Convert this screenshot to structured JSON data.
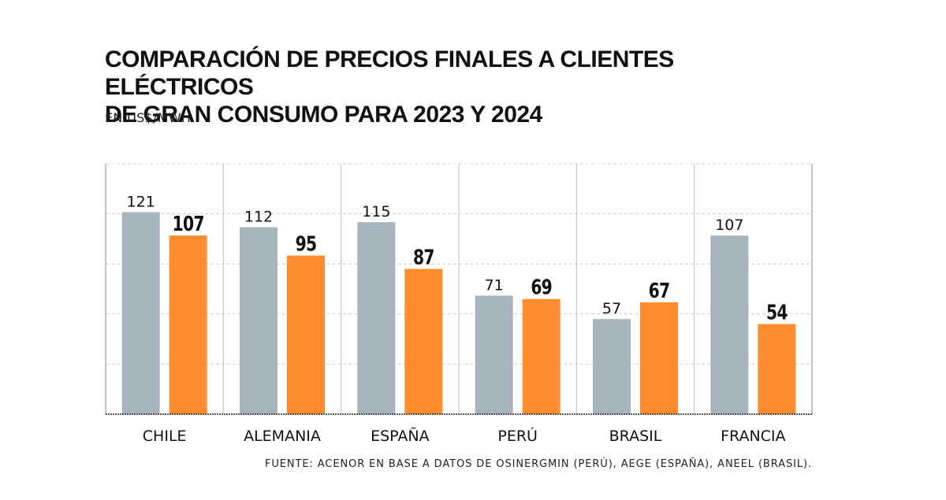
{
  "header": {
    "title_line1": "COMPARACIÓN DE PRECIOS FINALES A CLIENTES ELÉCTRICOS",
    "title_line2": "DE GRAN CONSUMO PARA 2023 Y 2024",
    "subtitle": "EN US$/MWH"
  },
  "footer": {
    "source": "FUENTE: ACENOR EN BASE A DATOS DE OSINERGMIN (PERÚ), AEGE (ESPAÑA), ANEEL (BRASIL)."
  },
  "colors": {
    "series_2023": "#a6b5bb",
    "series_2024": "#ff8c2f",
    "grid": "#cccccc",
    "divider": "#bfbfbf",
    "axis": "#222222"
  },
  "chart_data": {
    "type": "bar",
    "title": "COMPARACIÓN DE PRECIOS FINALES A CLIENTES ELÉCTRICOS DE GRAN CONSUMO PARA 2023 Y 2024",
    "subtitle": "EN US$/MWH",
    "categories": [
      "CHILE",
      "ALEMANIA",
      "ESPAÑA",
      "PERÚ",
      "BRASIL",
      "FRANCIA"
    ],
    "series": [
      {
        "values": [
          121,
          112,
          115,
          71,
          57,
          107
        ]
      },
      {
        "values": [
          107,
          95,
          87,
          69,
          67,
          54
        ]
      }
    ],
    "ylim": [
      0,
      150
    ],
    "grid": true,
    "legend": "none"
  }
}
